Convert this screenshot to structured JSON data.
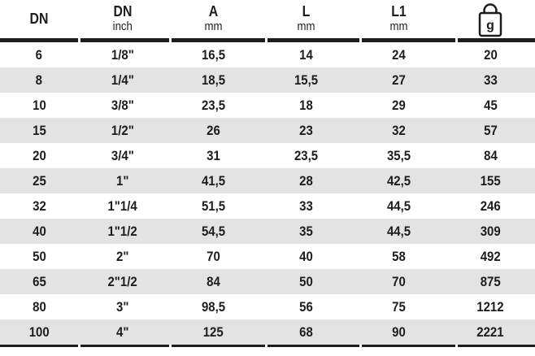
{
  "table": {
    "header": {
      "columns": [
        {
          "title": "DN",
          "subtitle": ""
        },
        {
          "title": "DN",
          "subtitle": "inch"
        },
        {
          "title": "A",
          "subtitle": "mm"
        },
        {
          "title": "L",
          "subtitle": "mm"
        },
        {
          "title": "L1",
          "subtitle": "mm"
        },
        {
          "title": "g",
          "subtitle": "",
          "icon": "weight-icon"
        }
      ]
    },
    "rows": [
      [
        "6",
        "1/8\"",
        "16,5",
        "14",
        "24",
        "20"
      ],
      [
        "8",
        "1/4\"",
        "18,5",
        "15,5",
        "27",
        "33"
      ],
      [
        "10",
        "3/8\"",
        "23,5",
        "18",
        "29",
        "45"
      ],
      [
        "15",
        "1/2\"",
        "26",
        "23",
        "32",
        "57"
      ],
      [
        "20",
        "3/4\"",
        "31",
        "23,5",
        "35,5",
        "84"
      ],
      [
        "25",
        "1\"",
        "41,5",
        "28",
        "42,5",
        "155"
      ],
      [
        "32",
        "1\"1/4",
        "51,5",
        "33",
        "44,5",
        "246"
      ],
      [
        "40",
        "1\"1/2",
        "54,5",
        "35",
        "44,5",
        "309"
      ],
      [
        "50",
        "2\"",
        "70",
        "40",
        "58",
        "492"
      ],
      [
        "65",
        "2\"1/2",
        "84",
        "50",
        "70",
        "875"
      ],
      [
        "80",
        "3\"",
        "98,5",
        "56",
        "75",
        "1212"
      ],
      [
        "100",
        "4\"",
        "125",
        "68",
        "90",
        "2221"
      ]
    ]
  },
  "colors": {
    "text": "#1d1d1b",
    "row_alt_background": "#e3e3e4",
    "rule": "#1d1d1b"
  }
}
